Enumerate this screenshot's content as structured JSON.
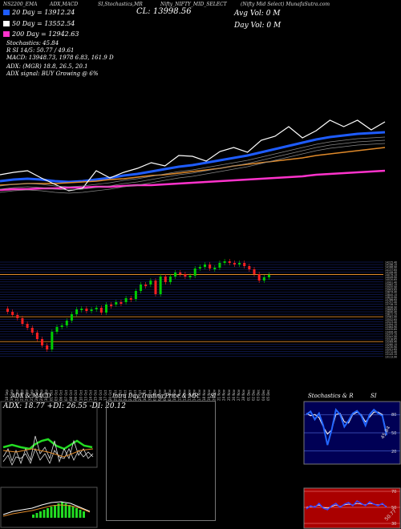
{
  "header": {
    "ticker_fragment": "NS2200_EMA",
    "item_adx_macd": "ADX,MACD",
    "item_stoch": "SI,Stochastics,MR",
    "item_close": "CL: 13998.56",
    "item_symbol": "Nifty_NIFTY_MID_SELECT",
    "item_provider": "(Nifty Mid Select) MunafaSutra.com",
    "avg_vol": "Avg Vol: 0  M",
    "day_vol": "Day Vol: 0  M"
  },
  "legend": {
    "ma20": "20  Day  =  13912.24",
    "ma50": "50  Day  =  13552.54",
    "ma200": "200  Day  =  12942.63",
    "stoch": "Stochastics: 45.84",
    "r": "R            SI 14/5: 50.77 / 49.61",
    "macd": "MACD: 13948.73,  1978                 6.83,  161.9 D",
    "adx": "ADX:                           (MGR) 18.8,  26.5,  20.1",
    "adx_signal": "ADX  signal:                                      BUY Growing @ 6%"
  },
  "colors": {
    "ma20": "#1e5cff",
    "ma50": "#ffffff",
    "ma200": "#ff33cc",
    "up": "#00cc00",
    "down": "#ff2020",
    "macd_green": "#22dd22",
    "stoch_bg": "#000055",
    "rsi_bg": "#aa0000"
  },
  "chart_data": [
    {
      "type": "line",
      "panel": "price-moving-averages",
      "series": [
        {
          "name": "20 Day",
          "values": [
            226,
            224,
            223,
            224,
            226,
            227,
            226,
            224,
            222,
            219,
            217,
            214,
            211,
            208,
            206,
            203,
            200,
            197,
            194,
            190,
            186,
            182,
            178,
            174,
            171,
            169,
            167,
            166,
            165
          ]
        },
        {
          "name": "50 Day",
          "values": [
            231,
            230,
            229,
            229,
            229,
            228,
            227,
            226,
            224,
            223,
            221,
            219,
            218,
            216,
            214,
            212,
            210,
            207,
            205,
            203,
            201,
            199,
            197,
            194,
            192,
            190,
            188,
            186,
            184
          ]
        },
        {
          "name": "200 Day",
          "values": [
            237,
            236,
            236,
            235,
            235,
            234,
            234,
            233,
            233,
            232,
            231,
            231,
            230,
            229,
            228,
            227,
            226,
            225,
            224,
            223,
            222,
            221,
            220,
            218,
            217,
            216,
            215,
            214,
            213
          ]
        },
        {
          "name": "Price",
          "values": [
            218,
            215,
            213,
            222,
            230,
            238,
            235,
            213,
            222,
            215,
            210,
            203,
            207,
            194,
            195,
            201,
            189,
            184,
            190,
            175,
            170,
            158,
            172,
            163,
            150,
            158,
            150,
            162,
            152
          ]
        }
      ]
    },
    {
      "type": "candlestick",
      "panel": "daily-candles",
      "x": [
        "18 Sep",
        "19 Sep",
        "22 Sep",
        "23 Sep",
        "24 Sep",
        "25 Sep",
        "26 Sep",
        "29 Sep",
        "30 Sep",
        "01 Oct",
        "03 Oct",
        "06 Oct",
        "07 Oct",
        "08 Oct",
        "09 Oct",
        "10 Oct",
        "13 Oct",
        "14 Oct",
        "15 Oct",
        "16 Oct",
        "17 Oct",
        "20 Oct",
        "21 Oct",
        "23 Oct",
        "24 Oct",
        "27 Oct",
        "28 Oct",
        "29 Oct",
        "30 Oct",
        "31 Oct",
        "03 Nov",
        "04 Nov",
        "06 Nov",
        "07 Nov",
        "10 Nov",
        "11 Nov",
        "12 Nov",
        "13 Nov",
        "14 Nov",
        "17 Nov",
        "18 Nov",
        "19 Nov",
        "20 Nov",
        "21 Nov",
        "24 Nov",
        "25 Nov",
        "26 Nov",
        "27 Nov",
        "28 Nov",
        "01 Dec",
        "02 Dec",
        "03 Dec",
        "04 Dec",
        "05 Dec"
      ],
      "open": [
        385,
        389,
        393,
        397,
        404,
        409,
        415,
        423,
        431,
        436,
        414,
        408,
        406,
        400,
        392,
        386,
        385,
        388,
        386,
        384,
        390,
        380,
        380,
        377,
        377,
        372,
        373,
        363,
        355,
        355,
        350,
        367,
        345,
        352,
        345,
        340,
        342,
        345,
        344,
        335,
        333,
        330,
        335,
        334,
        328,
        326,
        328,
        330,
        328,
        332,
        336,
        342,
        350,
        346
      ],
      "close": [
        389,
        393,
        397,
        404,
        409,
        415,
        423,
        431,
        436,
        414,
        408,
        406,
        400,
        392,
        386,
        385,
        388,
        386,
        384,
        390,
        380,
        380,
        377,
        377,
        372,
        373,
        363,
        355,
        355,
        350,
        367,
        345,
        352,
        345,
        340,
        342,
        345,
        344,
        335,
        333,
        330,
        335,
        334,
        328,
        326,
        328,
        330,
        328,
        332,
        336,
        342,
        350,
        346,
        343
      ],
      "levels": [
        "14225.40",
        "14196.15",
        "14166.90",
        "14137.65",
        "14108.40",
        "14079.15",
        "14049.90",
        "14020.65",
        "13991.40",
        "13962.15",
        "13932.90",
        "13903.65",
        "13874.40",
        "13845.15",
        "13815.90",
        "13786.65",
        "13757.40",
        "13728.15",
        "13698.90",
        "13669.65",
        "13640.40",
        "13611.15",
        "13581.90",
        "13552.65",
        "13523.40",
        "13494.15",
        "13464.90",
        "13435.65",
        "13406.40",
        "13377.15",
        "13347.90",
        "13318.65",
        "13289.40",
        "13260.15",
        "13230.90",
        "13201.65",
        "13172.40",
        "13143.15",
        "13113.90"
      ]
    },
    {
      "type": "line",
      "panel": "adx-macd",
      "title": "ADX  & MACD",
      "readout": "ADX: 18.77  +DI: 26.55  -DI: 20.12"
    },
    {
      "type": "line",
      "panel": "intraday",
      "title": "Intra  Day Trading Price  & MR",
      "title_right": "SI"
    },
    {
      "type": "line",
      "panel": "stochastics",
      "title": "Stochastics & R",
      "title_right": "SI",
      "ticks": [
        "80",
        "50",
        "20"
      ],
      "value_label": "45.84",
      "values": [
        80,
        85,
        72,
        82,
        62,
        30,
        55,
        88,
        80,
        60,
        70,
        82,
        86,
        78,
        62,
        80,
        88,
        82,
        78,
        46
      ],
      "signal": [
        82,
        78,
        80,
        75,
        60,
        48,
        55,
        80,
        82,
        68,
        66,
        80,
        84,
        80,
        68,
        76,
        84,
        84,
        80,
        50
      ]
    },
    {
      "type": "line",
      "panel": "rsi",
      "ticks": [
        "70",
        "50",
        "30"
      ],
      "value_label": "50.77",
      "values": [
        48,
        52,
        50,
        55,
        49,
        47,
        52,
        55,
        50,
        54,
        56,
        52,
        58,
        55,
        52,
        57,
        54,
        52,
        55,
        50
      ],
      "signal": [
        50,
        51,
        51,
        53,
        50,
        49,
        51,
        53,
        51,
        53,
        54,
        53,
        55,
        54,
        53,
        55,
        54,
        53,
        54,
        51
      ]
    }
  ]
}
